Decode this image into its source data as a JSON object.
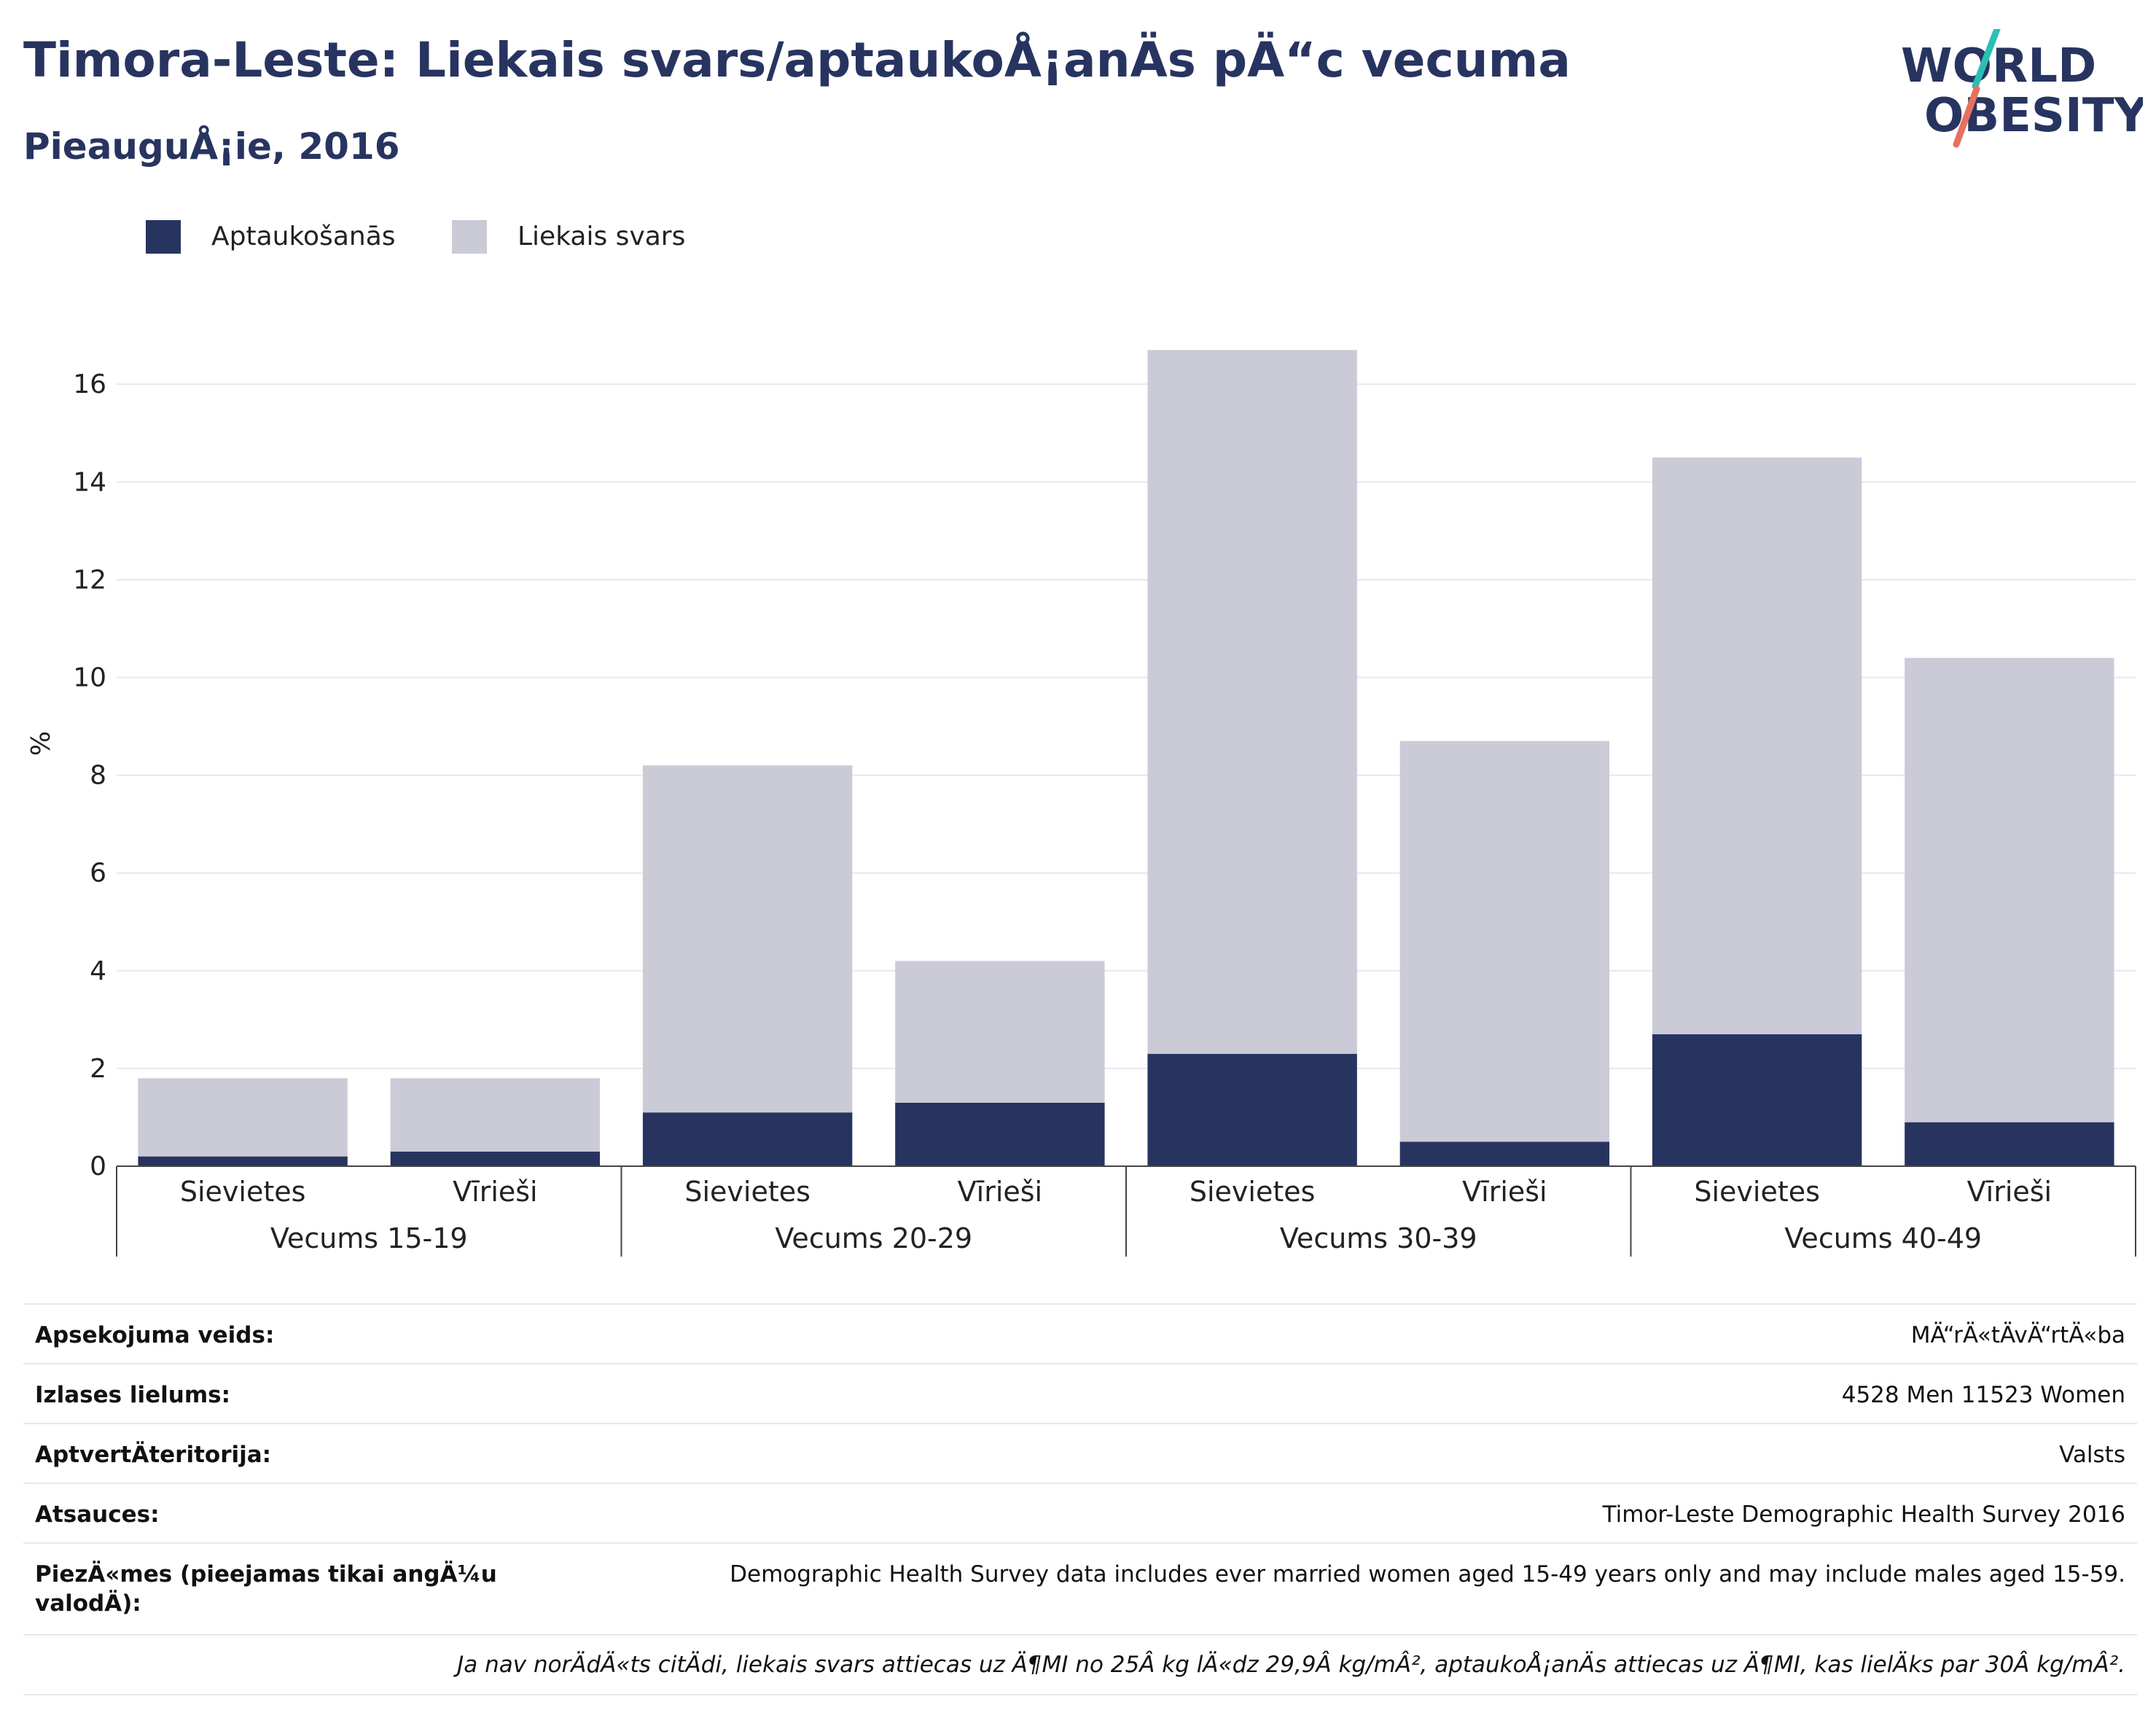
{
  "header": {
    "title": "Timora-Leste: Liekais svars/aptaukoÅ¡anÄs pÄ“c vecuma",
    "subtitle": "PieauguÅ¡ie, 2016"
  },
  "logo": {
    "line1": "WORLD",
    "line2": "OBESITY",
    "colors": {
      "text": "#283460",
      "slash_top": "#2bbfb3",
      "slash_bottom": "#e8705f"
    }
  },
  "legend": {
    "items": [
      {
        "label": "Aptaukošanās",
        "color": "#283460"
      },
      {
        "label": "Liekais svars",
        "color": "#cacbd7"
      }
    ]
  },
  "chart_data": {
    "type": "bar",
    "stacked": true,
    "ylabel": "%",
    "ylim": [
      0,
      17.3
    ],
    "yticks": [
      0,
      2,
      4,
      6,
      8,
      10,
      12,
      14,
      16
    ],
    "grid": true,
    "legend_position": "top-left",
    "groups": [
      "Vecums 15-19",
      "Vecums 20-29",
      "Vecums 30-39",
      "Vecums 40-49"
    ],
    "categories": [
      "Sievietes",
      "Vīrieši",
      "Sievietes",
      "Vīrieši",
      "Sievietes",
      "Vīrieši",
      "Sievietes",
      "Vīrieši"
    ],
    "series": [
      {
        "name": "Aptaukošanās",
        "color": "#283460",
        "values": [
          0.2,
          0.3,
          1.1,
          1.3,
          2.3,
          0.5,
          2.7,
          0.9
        ]
      },
      {
        "name": "Liekais svars",
        "color": "#cacbd7",
        "values": [
          1.6,
          1.5,
          7.1,
          2.9,
          14.4,
          8.2,
          11.8,
          9.5
        ]
      }
    ]
  },
  "info": {
    "rows": [
      {
        "key": "Apsekojuma veids:",
        "value": "MÄ“rÄ«tÄvÄ“rtÄ«ba"
      },
      {
        "key": "Izlases lielums:",
        "value": "4528 Men 11523 Women"
      },
      {
        "key": "AptvertÄteritorija:",
        "value": "Valsts"
      },
      {
        "key": "Atsauces:",
        "value": "Timor-Leste Demographic Health Survey 2016"
      },
      {
        "key": "PiezÄ«mes (pieejamas tikai angÄ¼u valodÄ):",
        "value": "Demographic Health Survey data includes ever married women aged 15-49 years only and may include males aged 15-59."
      }
    ],
    "footnote": "Ja nav norÄdÄ«ts citÄdi, liekais svars attiecas uz Ä¶MI no 25Â kg lÄ«dz 29,9Â kg/mÂ², aptaukoÅ¡anÄs attiecas uz Ä¶MI, kas lielÄks par 30Â kg/mÂ²."
  }
}
